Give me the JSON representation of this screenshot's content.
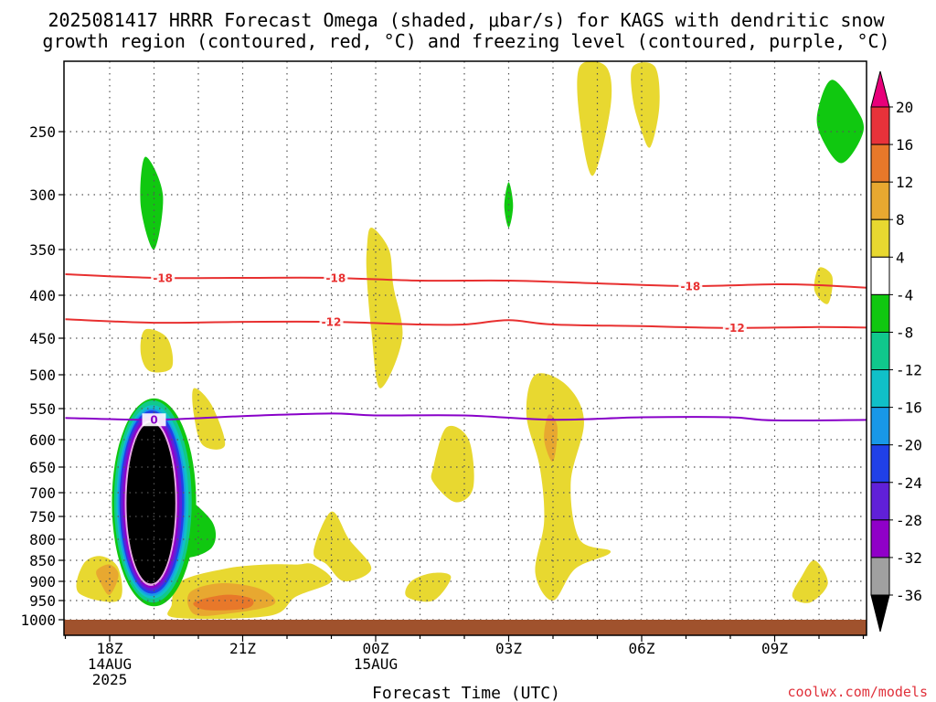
{
  "chart_data": {
    "type": "heatmap",
    "title_lines": [
      "2025081417 HRRR Forecast Omega (shaded, μbar/s) for KAGS with dendritic snow",
      "growth region (contoured, red, °C) and freezing level (contoured, purple, °C)"
    ],
    "xlabel": "Forecast Time (UTC)",
    "credit": "coolwx.com/models",
    "x_range_hours_since_18Z": [
      -1,
      17.5
    ],
    "y_axis_pressure_hPa": [
      200,
      1020
    ],
    "y_ticks": [
      "250",
      "300",
      "350",
      "400",
      "450",
      "500",
      "550",
      "600",
      "650",
      "700",
      "750",
      "800",
      "850",
      "900",
      "950",
      "1000"
    ],
    "x_ticks": [
      {
        "hour": 0,
        "lines": [
          "18Z",
          "14AUG",
          "2025"
        ]
      },
      {
        "hour": 3,
        "lines": [
          "21Z"
        ]
      },
      {
        "hour": 6,
        "lines": [
          "00Z",
          "15AUG"
        ]
      },
      {
        "hour": 9,
        "lines": [
          "03Z"
        ]
      },
      {
        "hour": 12,
        "lines": [
          "06Z"
        ]
      },
      {
        "hour": 15,
        "lines": [
          "09Z"
        ]
      }
    ],
    "colorbar": {
      "labels": [
        "20",
        "16",
        "12",
        "8",
        "4",
        "-4",
        "-8",
        "-12",
        "-16",
        "-20",
        "-24",
        "-28",
        "-32",
        "-36"
      ],
      "colors": [
        "#e8007a",
        "#e8323a",
        "#e8782a",
        "#e8a830",
        "#e8d830",
        "#ffffff",
        "#10c810",
        "#10c88c",
        "#10c0c8",
        "#1898e8",
        "#2040e8",
        "#6020d8",
        "#9000c8",
        "#a0a0a0",
        "#000000"
      ]
    },
    "contours": [
      {
        "name": "-18 isotherm",
        "color": "#e83030",
        "label": "-18",
        "points": [
          [
            -1,
            377
          ],
          [
            1,
            381
          ],
          [
            3,
            381
          ],
          [
            5,
            381
          ],
          [
            7,
            384
          ],
          [
            9,
            384
          ],
          [
            11,
            387
          ],
          [
            13,
            390
          ],
          [
            15,
            388
          ],
          [
            16,
            389
          ],
          [
            17.5,
            393
          ]
        ],
        "label_hours": [
          1.2,
          5.1,
          13.1
        ]
      },
      {
        "name": "-12 isotherm",
        "color": "#e83030",
        "label": "-12",
        "points": [
          [
            -1,
            428
          ],
          [
            1,
            432
          ],
          [
            3,
            431
          ],
          [
            5,
            431
          ],
          [
            7,
            434
          ],
          [
            8,
            434
          ],
          [
            9,
            429
          ],
          [
            10,
            434
          ],
          [
            12,
            436
          ],
          [
            14,
            438
          ],
          [
            16,
            437
          ],
          [
            17.5,
            438
          ]
        ],
        "label_hours": [
          5,
          14.1
        ]
      },
      {
        "name": "0 isotherm",
        "color": "#8800c8",
        "label": "0",
        "points": [
          [
            -1,
            565
          ],
          [
            1,
            568
          ],
          [
            3,
            562
          ],
          [
            5,
            558
          ],
          [
            6,
            561
          ],
          [
            8,
            561
          ],
          [
            10,
            568
          ],
          [
            12,
            564
          ],
          [
            14,
            564
          ],
          [
            15,
            569
          ],
          [
            17.5,
            568
          ]
        ],
        "label_hours": [
          1
        ]
      }
    ],
    "omega_regions": [
      {
        "value": "4",
        "color": "#e8d830",
        "points": [
          [
            11.8,
            200
          ],
          [
            12.3,
            200
          ],
          [
            12.4,
            230
          ],
          [
            12.2,
            262
          ],
          [
            12.0,
            250
          ],
          [
            11.8,
            225
          ]
        ]
      },
      {
        "value": "4",
        "color": "#e8d830",
        "points": [
          [
            10.6,
            200
          ],
          [
            11.2,
            200
          ],
          [
            11.3,
            230
          ],
          [
            10.9,
            285
          ],
          [
            10.6,
            240
          ]
        ]
      },
      {
        "value": "4",
        "color": "#e8d830",
        "points": [
          [
            5.9,
            330
          ],
          [
            6.3,
            350
          ],
          [
            6.4,
            390
          ],
          [
            6.6,
            450
          ],
          [
            6.1,
            520
          ],
          [
            5.9,
            440
          ],
          [
            5.8,
            380
          ],
          [
            5.8,
            350
          ]
        ]
      },
      {
        "value": "4",
        "color": "#e8d830",
        "points": [
          [
            16,
            370
          ],
          [
            16.3,
            380
          ],
          [
            16.2,
            410
          ],
          [
            15.9,
            395
          ]
        ]
      },
      {
        "value": "4",
        "color": "#e8d830",
        "points": [
          [
            9.6,
            500
          ],
          [
            10.3,
            515
          ],
          [
            10.7,
            570
          ],
          [
            10.4,
            680
          ],
          [
            10.6,
            800
          ],
          [
            11.3,
            830
          ],
          [
            10.5,
            870
          ],
          [
            10.0,
            950
          ],
          [
            9.6,
            880
          ],
          [
            9.8,
            760
          ],
          [
            9.7,
            650
          ],
          [
            9.4,
            560
          ]
        ]
      },
      {
        "value": "4",
        "color": "#e8d830",
        "points": [
          [
            7.6,
            580
          ],
          [
            8.1,
            600
          ],
          [
            8.2,
            690
          ],
          [
            7.8,
            720
          ],
          [
            7.3,
            680
          ],
          [
            7.3,
            650
          ]
        ]
      },
      {
        "value": "4",
        "color": "#e8d830",
        "points": [
          [
            0.8,
            440
          ],
          [
            1.3,
            450
          ],
          [
            1.4,
            490
          ],
          [
            0.9,
            495
          ],
          [
            0.7,
            470
          ]
        ]
      },
      {
        "value": "4",
        "color": "#e8d830",
        "points": [
          [
            1.9,
            520
          ],
          [
            2.3,
            545
          ],
          [
            2.6,
            610
          ],
          [
            2.1,
            610
          ],
          [
            1.9,
            560
          ]
        ]
      },
      {
        "value": "4",
        "color": "#e8d830",
        "points": [
          [
            5.0,
            740
          ],
          [
            5.4,
            800
          ],
          [
            5.9,
            870
          ],
          [
            5.3,
            900
          ],
          [
            4.9,
            860
          ],
          [
            4.6,
            830
          ]
        ]
      },
      {
        "value": "4",
        "color": "#e8d830",
        "points": [
          [
            6.8,
            900
          ],
          [
            7.3,
            880
          ],
          [
            7.7,
            890
          ],
          [
            7.3,
            950
          ],
          [
            6.7,
            940
          ]
        ]
      },
      {
        "value": "4",
        "color": "#e8d830",
        "points": [
          [
            -0.6,
            860
          ],
          [
            -0.2,
            840
          ],
          [
            0.2,
            870
          ],
          [
            0.2,
            950
          ],
          [
            -0.7,
            930
          ]
        ]
      },
      {
        "value": "4",
        "color": "#e8d830",
        "points": [
          [
            1.6,
            900
          ],
          [
            2.6,
            870
          ],
          [
            3.5,
            860
          ],
          [
            4.2,
            860
          ],
          [
            4.6,
            860
          ],
          [
            5.0,
            900
          ],
          [
            4.2,
            940
          ],
          [
            3.6,
            990
          ],
          [
            1.5,
            995
          ],
          [
            1.4,
            960
          ]
        ]
      },
      {
        "value": "4",
        "color": "#e8d830",
        "points": [
          [
            15.6,
            890
          ],
          [
            15.9,
            850
          ],
          [
            16.2,
            905
          ],
          [
            15.8,
            955
          ],
          [
            15.4,
            940
          ]
        ]
      },
      {
        "value": "8",
        "color": "#e8a830",
        "points": [
          [
            1.8,
            930
          ],
          [
            2.5,
            905
          ],
          [
            3.4,
            920
          ],
          [
            3.7,
            960
          ],
          [
            2.6,
            985
          ],
          [
            1.9,
            985
          ]
        ]
      },
      {
        "value": "12",
        "color": "#e8782a",
        "points": [
          [
            1.9,
            955
          ],
          [
            2.6,
            935
          ],
          [
            3.2,
            945
          ],
          [
            3.1,
            970
          ],
          [
            2.2,
            975
          ]
        ]
      },
      {
        "value": "8",
        "color": "#e8a830",
        "points": [
          [
            -0.3,
            875
          ],
          [
            0,
            860
          ],
          [
            0.2,
            885
          ],
          [
            0,
            935
          ],
          [
            -0.2,
            905
          ]
        ]
      },
      {
        "value": "8",
        "color": "#e8a830",
        "points": [
          [
            9.9,
            560
          ],
          [
            10.1,
            580
          ],
          [
            10.0,
            640
          ],
          [
            9.8,
            600
          ]
        ]
      },
      {
        "value": "-4",
        "color": "#10c810",
        "points": [
          [
            0.8,
            270
          ],
          [
            1.2,
            300
          ],
          [
            1.0,
            350
          ],
          [
            0.7,
            310
          ]
        ]
      },
      {
        "value": "-4",
        "color": "#10c810",
        "points": [
          [
            9.0,
            290
          ],
          [
            9.1,
            310
          ],
          [
            9.0,
            330
          ],
          [
            8.9,
            310
          ]
        ]
      },
      {
        "value": "-4",
        "color": "#10c810",
        "points": [
          [
            16.3,
            210
          ],
          [
            16.8,
            230
          ],
          [
            17.0,
            250
          ],
          [
            16.5,
            275
          ],
          [
            16.0,
            250
          ],
          [
            16.0,
            230
          ]
        ]
      },
      {
        "value": "-4",
        "color": "#10c810",
        "points": [
          [
            1.5,
            700
          ],
          [
            2.3,
            760
          ],
          [
            2.3,
            820
          ],
          [
            1.6,
            840
          ],
          [
            1.3,
            760
          ]
        ]
      }
    ],
    "omega_core": [
      {
        "value": "-8",
        "color": "#10c810",
        "bbox_hours": [
          0.05,
          1.95
        ],
        "bbox_p": [
          535,
          965
        ]
      },
      {
        "value": "-12",
        "color": "#10c88c",
        "bbox_hours": [
          0.1,
          1.85
        ],
        "bbox_p": [
          538,
          955
        ]
      },
      {
        "value": "-16",
        "color": "#10c0c8",
        "bbox_hours": [
          0.15,
          1.78
        ],
        "bbox_p": [
          545,
          945
        ]
      },
      {
        "value": "-20",
        "color": "#1898e8",
        "bbox_hours": [
          0.18,
          1.72
        ],
        "bbox_p": [
          550,
          938
        ]
      },
      {
        "value": "-24",
        "color": "#2040e8",
        "bbox_hours": [
          0.22,
          1.68
        ],
        "bbox_p": [
          553,
          932
        ]
      },
      {
        "value": "-28",
        "color": "#6020d8",
        "bbox_hours": [
          0.25,
          1.63
        ],
        "bbox_p": [
          558,
          925
        ]
      },
      {
        "value": "-32",
        "color": "#9000c8",
        "bbox_hours": [
          0.3,
          1.57
        ],
        "bbox_p": [
          563,
          918
        ]
      },
      {
        "value": "-36",
        "color": "#e8a8e8",
        "bbox_hours": [
          0.34,
          1.52
        ],
        "bbox_p": [
          568,
          912
        ]
      },
      {
        "value": "-40",
        "color": "#000000",
        "bbox_hours": [
          0.38,
          1.48
        ],
        "bbox_p": [
          572,
          906
        ]
      }
    ],
    "surface_band": {
      "color": "#a0522d",
      "p_top": 1000
    }
  }
}
